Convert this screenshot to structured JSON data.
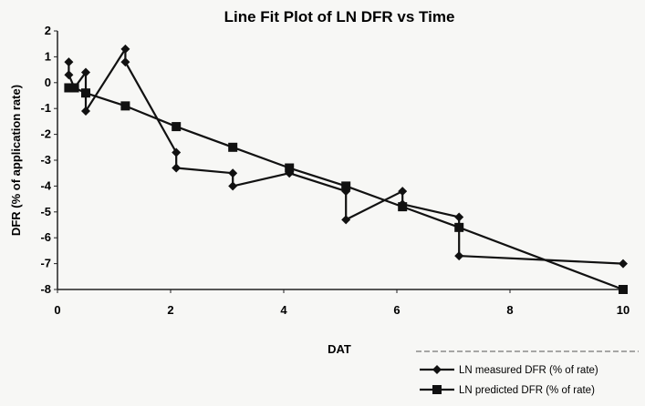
{
  "chart_data": {
    "type": "line",
    "title": "Line Fit Plot of LN DFR vs Time",
    "xlabel": "DAT",
    "ylabel": "DFR (% of application rate)",
    "xlim": [
      0,
      10
    ],
    "ylim": [
      -8,
      2
    ],
    "xticks": [
      0,
      2,
      4,
      6,
      8,
      10
    ],
    "yticks": [
      2,
      1,
      0,
      -1,
      -2,
      -3,
      -4,
      -5,
      -6,
      -7,
      -8
    ],
    "legend_position": "bottom-right",
    "series": [
      {
        "name": "LN measured DFR (% of rate)",
        "marker": "diamond",
        "color": "#111111",
        "points": [
          [
            0.2,
            0.8
          ],
          [
            0.2,
            0.3
          ],
          [
            0.3,
            -0.2
          ],
          [
            0.5,
            0.4
          ],
          [
            0.5,
            -1.1
          ],
          [
            1.2,
            1.3
          ],
          [
            1.2,
            0.8
          ],
          [
            2.1,
            -2.7
          ],
          [
            2.1,
            -3.3
          ],
          [
            3.1,
            -3.5
          ],
          [
            3.1,
            -4.0
          ],
          [
            4.1,
            -3.5
          ],
          [
            5.1,
            -4.2
          ],
          [
            5.1,
            -5.3
          ],
          [
            6.1,
            -4.2
          ],
          [
            6.1,
            -4.7
          ],
          [
            7.1,
            -5.2
          ],
          [
            7.1,
            -6.7
          ],
          [
            10.0,
            -7.0
          ]
        ]
      },
      {
        "name": "LN predicted DFR (% of rate)",
        "marker": "square",
        "color": "#111111",
        "points": [
          [
            0.2,
            -0.2
          ],
          [
            0.3,
            -0.2
          ],
          [
            0.5,
            -0.4
          ],
          [
            1.2,
            -0.9
          ],
          [
            2.1,
            -1.7
          ],
          [
            3.1,
            -2.5
          ],
          [
            4.1,
            -3.3
          ],
          [
            5.1,
            -4.0
          ],
          [
            6.1,
            -4.8
          ],
          [
            7.1,
            -5.6
          ],
          [
            10.0,
            -8.0
          ]
        ]
      }
    ]
  }
}
